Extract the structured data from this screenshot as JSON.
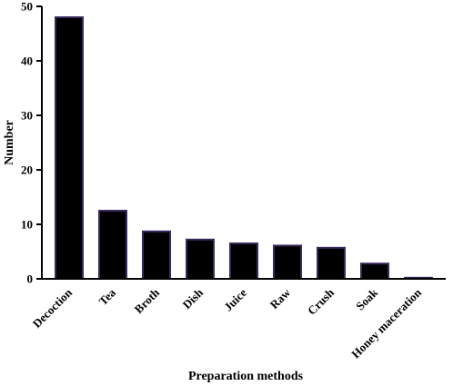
{
  "chart_data": {
    "type": "bar",
    "title": "",
    "xlabel": "Preparation methods",
    "ylabel": "Number",
    "ylim": [
      0,
      50
    ],
    "yticks": [
      0,
      10,
      20,
      30,
      40,
      50
    ],
    "grid": false,
    "legend": "none",
    "categories": [
      "Decoction",
      "Tea",
      "Broth",
      "Dish",
      "Juice",
      "Raw",
      "Crush",
      "Soak",
      "Honey maceration"
    ],
    "values": [
      48,
      12.5,
      8.7,
      7.2,
      6.5,
      6.1,
      5.7,
      2.8,
      0.2
    ],
    "colors": {
      "bar_fill": "#000000",
      "bar_stroke": "#3a2a5e",
      "axis": "#000000"
    }
  }
}
